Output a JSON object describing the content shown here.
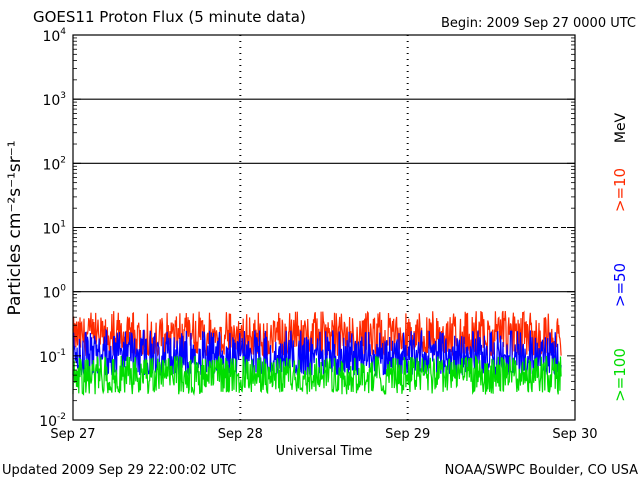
{
  "header": {
    "title": "GOES11 Proton Flux (5 minute data)",
    "begin": "Begin: 2009 Sep 27 0000 UTC"
  },
  "footer": {
    "updated": "Updated 2009 Sep 29 22:00:02 UTC",
    "credit": "NOAA/SWPC Boulder, CO USA"
  },
  "chart_data": {
    "type": "line",
    "title": "GOES11 Proton Flux (5 minute data)",
    "xlabel": "Universal Time",
    "ylabel": "Particles cm⁻²s⁻¹sr⁻¹",
    "y_scale": "log",
    "ylim": [
      0.01,
      10000
    ],
    "yticks": [
      {
        "value": 0.01,
        "base": "10",
        "exp": "-2"
      },
      {
        "value": 0.1,
        "base": "10",
        "exp": "-1"
      },
      {
        "value": 1,
        "base": "10",
        "exp": "0"
      },
      {
        "value": 10,
        "base": "10",
        "exp": "1"
      },
      {
        "value": 100,
        "base": "10",
        "exp": "2"
      },
      {
        "value": 1000,
        "base": "10",
        "exp": "3"
      },
      {
        "value": 10000,
        "base": "10",
        "exp": "4"
      }
    ],
    "x_range": [
      "2009-09-27 00:00",
      "2009-09-30 00:00"
    ],
    "xticks": [
      "Sep 27",
      "Sep 28",
      "Sep 29",
      "Sep 30"
    ],
    "reference_lines": [
      {
        "value": 1,
        "style": "solid"
      },
      {
        "value": 10,
        "style": "dashed"
      },
      {
        "value": 100,
        "style": "solid"
      },
      {
        "value": 1000,
        "style": "solid"
      }
    ],
    "energy_unit": "MeV",
    "series": [
      {
        "name": ">=10",
        "color": "#ff2a00",
        "typical": 0.2,
        "range": [
          0.1,
          0.5
        ]
      },
      {
        "name": ">=50",
        "color": "#0000ff",
        "typical": 0.1,
        "range": [
          0.05,
          0.25
        ]
      },
      {
        "name": ">=100",
        "color": "#00dd00",
        "typical": 0.05,
        "range": [
          0.025,
          0.1
        ]
      }
    ],
    "data_end": "2009-09-29 22:00"
  }
}
